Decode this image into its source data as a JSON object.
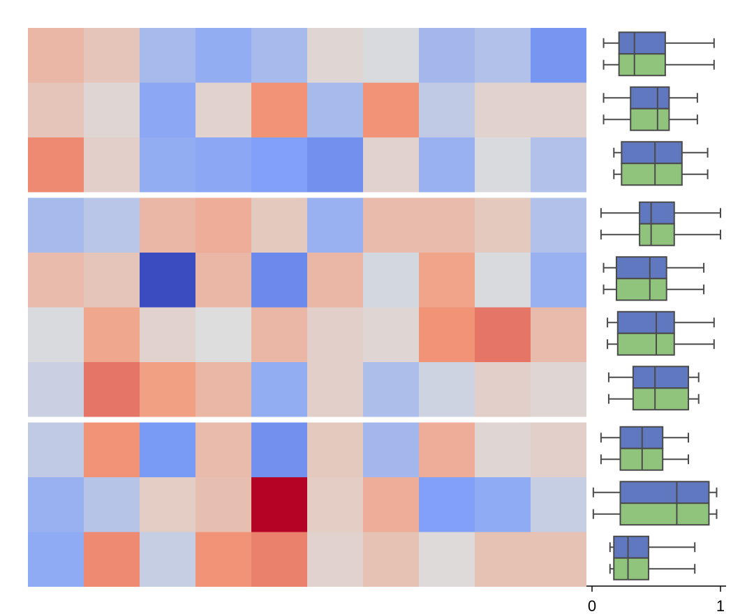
{
  "chart_data": [
    {
      "type": "heatmap",
      "title": "",
      "xlabel": "",
      "ylabel": "",
      "row_groups": [
        3,
        4,
        3
      ],
      "colormap": "coolwarm",
      "vmin": -1.0,
      "vmax": 1.0,
      "values": [
        [
          0.28,
          0.18,
          -0.28,
          -0.38,
          -0.28,
          0.05,
          -0.02,
          -0.3,
          -0.22,
          -0.55
        ],
        [
          0.18,
          0.05,
          -0.42,
          0.08,
          0.52,
          -0.28,
          0.52,
          -0.15,
          0.08,
          0.08
        ],
        [
          0.55,
          0.1,
          -0.38,
          -0.42,
          -0.48,
          -0.58,
          0.08,
          -0.35,
          -0.02,
          -0.22
        ],
        [
          -0.28,
          -0.18,
          0.28,
          0.35,
          0.15,
          -0.35,
          0.25,
          0.25,
          0.15,
          -0.22
        ],
        [
          0.25,
          0.18,
          -1.0,
          0.28,
          -0.62,
          0.28,
          -0.05,
          0.42,
          -0.02,
          -0.35
        ],
        [
          -0.02,
          0.4,
          0.08,
          0.0,
          0.28,
          0.1,
          0.05,
          0.52,
          0.62,
          0.25
        ],
        [
          -0.1,
          0.62,
          0.45,
          0.28,
          -0.38,
          0.1,
          -0.25,
          -0.08,
          0.1,
          0.05
        ],
        [
          -0.15,
          0.52,
          -0.52,
          0.25,
          -0.58,
          0.15,
          -0.3,
          0.35,
          0.05,
          0.1
        ],
        [
          -0.35,
          -0.2,
          0.12,
          0.22,
          1.0,
          0.12,
          0.35,
          -0.48,
          -0.4,
          -0.12
        ],
        [
          -0.4,
          0.55,
          -0.12,
          0.52,
          0.58,
          0.08,
          0.2,
          0.02,
          0.2,
          0.2
        ]
      ]
    },
    {
      "type": "box",
      "orientation": "horizontal",
      "xlim": [
        0,
        1
      ],
      "xticks": [
        "0",
        "1"
      ],
      "series_colors": [
        "#6078c0",
        "#90c47c"
      ],
      "rows": [
        {
          "whisker_low": 0.09,
          "q1": 0.21,
          "median": 0.33,
          "q3": 0.57,
          "whisker_high": 0.95
        },
        {
          "whisker_low": 0.09,
          "q1": 0.3,
          "median": 0.51,
          "q3": 0.6,
          "whisker_high": 0.82
        },
        {
          "whisker_low": 0.17,
          "q1": 0.23,
          "median": 0.49,
          "q3": 0.7,
          "whisker_high": 0.9
        },
        {
          "whisker_low": 0.07,
          "q1": 0.37,
          "median": 0.46,
          "q3": 0.64,
          "whisker_high": 1.0
        },
        {
          "whisker_low": 0.09,
          "q1": 0.19,
          "median": 0.45,
          "q3": 0.58,
          "whisker_high": 0.87
        },
        {
          "whisker_low": 0.12,
          "q1": 0.2,
          "median": 0.5,
          "q3": 0.64,
          "whisker_high": 0.95
        },
        {
          "whisker_low": 0.13,
          "q1": 0.32,
          "median": 0.49,
          "q3": 0.75,
          "whisker_high": 0.83
        },
        {
          "whisker_low": 0.07,
          "q1": 0.22,
          "median": 0.39,
          "q3": 0.55,
          "whisker_high": 0.75
        },
        {
          "whisker_low": 0.01,
          "q1": 0.22,
          "median": 0.66,
          "q3": 0.91,
          "whisker_high": 0.97
        },
        {
          "whisker_low": 0.14,
          "q1": 0.17,
          "median": 0.28,
          "q3": 0.44,
          "whisker_high": 0.8
        }
      ]
    }
  ]
}
